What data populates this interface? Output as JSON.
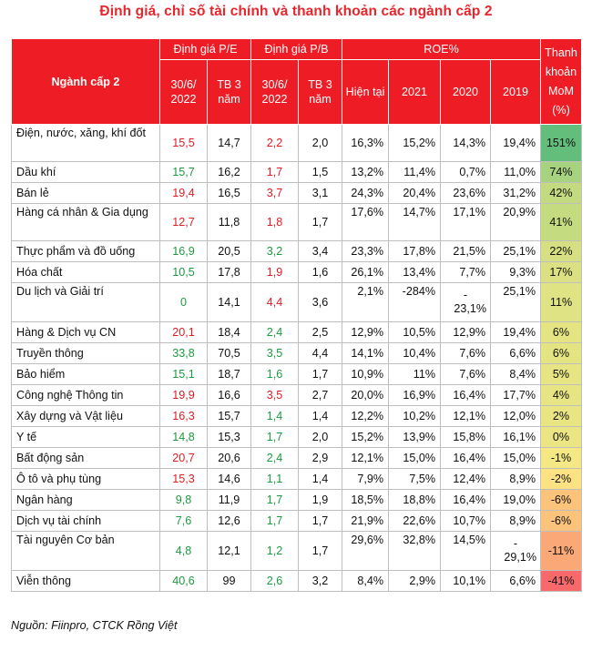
{
  "title": "Định giá, chỉ số tài chính và thanh khoản các ngành cấp 2",
  "headers": {
    "sector": "Ngành cấp 2",
    "pe": "Định giá P/E",
    "pb": "Định giá P/B",
    "roe": "ROE%",
    "liquidity": "Thanh khoản MoM (%)",
    "sub": {
      "date": "30/6/ 2022",
      "avg3y": "TB 3 năm",
      "current": "Hiện tại",
      "y2021": "2021",
      "y2020": "2020",
      "y2019": "2019"
    }
  },
  "rows": [
    {
      "name": "Điện, nước, xăng, khí đốt",
      "pe": "15,5",
      "pe_color": "red",
      "pe_avg": "14,7",
      "pb": "2,2",
      "pb_color": "red",
      "pb_avg": "2,0",
      "roe_now": "16,3%",
      "roe_2021": "15,2%",
      "roe_2020": "14,3%",
      "roe_2019": "19,4%",
      "liq": "151%",
      "liq_bg": "#63be7b",
      "tall": true
    },
    {
      "name": "Dầu khí",
      "pe": "15,7",
      "pe_color": "green",
      "pe_avg": "16,2",
      "pb": "1,7",
      "pb_color": "red",
      "pb_avg": "1,5",
      "roe_now": "13,2%",
      "roe_2021": "11,4%",
      "roe_2020": "0,7%",
      "roe_2019": "11,0%",
      "liq": "74%",
      "liq_bg": "#a7d27f"
    },
    {
      "name": "Bán lẻ",
      "pe": "19,4",
      "pe_color": "red",
      "pe_avg": "16,5",
      "pb": "3,7",
      "pb_color": "red",
      "pb_avg": "3,1",
      "roe_now": "24,3%",
      "roe_2021": "20,4%",
      "roe_2020": "23,6%",
      "roe_2019": "31,2%",
      "liq": "42%",
      "liq_bg": "#c4da80"
    },
    {
      "name": "Hàng cá nhân & Gia dụng",
      "pe": "12,7",
      "pe_color": "red",
      "pe_avg": "11,8",
      "pb": "1,8",
      "pb_color": "red",
      "pb_avg": "1,7",
      "roe_now": "17,6%",
      "roe_2021": "14,7%",
      "roe_2020": "17,1%",
      "roe_2019": "20,9%",
      "liq": "41%",
      "liq_bg": "#c5db80",
      "tall": true,
      "roe_top": true
    },
    {
      "name": "Thực phẩm và đồ uống",
      "pe": "16,9",
      "pe_color": "green",
      "pe_avg": "20,5",
      "pb": "3,2",
      "pb_color": "green",
      "pb_avg": "3,4",
      "roe_now": "23,3%",
      "roe_2021": "17,8%",
      "roe_2020": "21,5%",
      "roe_2019": "25,1%",
      "liq": "22%",
      "liq_bg": "#d6e082"
    },
    {
      "name": "Hóa chất",
      "pe": "10,5",
      "pe_color": "green",
      "pe_avg": "17,8",
      "pb": "1,9",
      "pb_color": "red",
      "pb_avg": "1,6",
      "roe_now": "26,1%",
      "roe_2021": "13,4%",
      "roe_2020": "7,7%",
      "roe_2019": "9,3%",
      "liq": "17%",
      "liq_bg": "#dbe182"
    },
    {
      "name": "Du lịch và Giải trí",
      "pe": "0",
      "pe_color": "green",
      "pe_avg": "14,1",
      "pb": "4,4",
      "pb_color": "red",
      "pb_avg": "3,6",
      "roe_now": "2,1%",
      "roe_2021": "-284%",
      "roe_2020": "-",
      "roe_2020_b": "23,1%",
      "roe_2019": "25,1%",
      "liq": "11%",
      "liq_bg": "#e0e383",
      "tall": true,
      "roe_top": true
    },
    {
      "name": "Hàng & Dịch vụ CN",
      "pe": "20,1",
      "pe_color": "red",
      "pe_avg": "18,4",
      "pb": "2,4",
      "pb_color": "green",
      "pb_avg": "2,5",
      "roe_now": "12,9%",
      "roe_2021": "10,5%",
      "roe_2020": "12,9%",
      "roe_2019": "19,4%",
      "liq": "6%",
      "liq_bg": "#e5e483"
    },
    {
      "name": "Truyền thông",
      "pe": "33,8",
      "pe_color": "green",
      "pe_avg": "70,5",
      "pb": "3,5",
      "pb_color": "green",
      "pb_avg": "4,4",
      "roe_now": "14,1%",
      "roe_2021": "10,4%",
      "roe_2020": "7,6%",
      "roe_2019": "6,6%",
      "liq": "6%",
      "liq_bg": "#e5e483"
    },
    {
      "name": "Bảo hiểm",
      "pe": "15,1",
      "pe_color": "green",
      "pe_avg": "18,7",
      "pb": "1,6",
      "pb_color": "green",
      "pb_avg": "1,7",
      "roe_now": "10,9%",
      "roe_2021": "11%",
      "roe_2020": "7,6%",
      "roe_2019": "8,4%",
      "liq": "5%",
      "liq_bg": "#e6e483"
    },
    {
      "name": "Công nghệ Thông tin",
      "pe": "19,9",
      "pe_color": "red",
      "pe_avg": "16,6",
      "pb": "3,5",
      "pb_color": "red",
      "pb_avg": "2,7",
      "roe_now": "20,0%",
      "roe_2021": "16,9%",
      "roe_2020": "16,4%",
      "roe_2019": "17,7%",
      "liq": "4%",
      "liq_bg": "#e7e583"
    },
    {
      "name": "Xây dựng và Vật liệu",
      "pe": "16,3",
      "pe_color": "red",
      "pe_avg": "15,7",
      "pb": "1,4",
      "pb_color": "green",
      "pb_avg": "1,4",
      "roe_now": "12,2%",
      "roe_2021": "10,2%",
      "roe_2020": "12,1%",
      "roe_2019": "12,0%",
      "liq": "2%",
      "liq_bg": "#e9e583"
    },
    {
      "name": "Y tế",
      "pe": "14,8",
      "pe_color": "green",
      "pe_avg": "15,3",
      "pb": "1,7",
      "pb_color": "green",
      "pb_avg": "2,0",
      "roe_now": "15,2%",
      "roe_2021": "13,9%",
      "roe_2020": "15,8%",
      "roe_2019": "16,1%",
      "liq": "0%",
      "liq_bg": "#ebe683"
    },
    {
      "name": "Bất động sản",
      "pe": "20,7",
      "pe_color": "red",
      "pe_avg": "20,6",
      "pb": "2,4",
      "pb_color": "green",
      "pb_avg": "2,9",
      "roe_now": "12,1%",
      "roe_2021": "15,0%",
      "roe_2020": "16,4%",
      "roe_2019": "15,0%",
      "liq": "-1%",
      "liq_bg": "#f5e884"
    },
    {
      "name": "Ô tô và phụ tùng",
      "pe": "15,3",
      "pe_color": "red",
      "pe_avg": "14,6",
      "pb": "1,1",
      "pb_color": "green",
      "pb_avg": "1,4",
      "roe_now": "7,9%",
      "roe_2021": "7,5%",
      "roe_2020": "12,4%",
      "roe_2019": "8,9%",
      "liq": "-2%",
      "liq_bg": "#fde283"
    },
    {
      "name": "Ngân hàng",
      "pe": "9,8",
      "pe_color": "green",
      "pe_avg": "11,9",
      "pb": "1,7",
      "pb_color": "green",
      "pb_avg": "1,9",
      "roe_now": "18,5%",
      "roe_2021": "18,8%",
      "roe_2020": "16,4%",
      "roe_2019": "19,0%",
      "liq": "-6%",
      "liq_bg": "#fcc37b"
    },
    {
      "name": "Dịch vụ tài chính",
      "pe": "7,6",
      "pe_color": "green",
      "pe_avg": "12,6",
      "pb": "1,7",
      "pb_color": "green",
      "pb_avg": "1,7",
      "roe_now": "21,9%",
      "roe_2021": "22,6%",
      "roe_2020": "10,7%",
      "roe_2019": "8,9%",
      "liq": "-6%",
      "liq_bg": "#fcc37b"
    },
    {
      "name": "Tài nguyên Cơ bản",
      "pe": "4,8",
      "pe_color": "green",
      "pe_avg": "12,1",
      "pb": "1,2",
      "pb_color": "green",
      "pb_avg": "1,7",
      "roe_now": "29,6%",
      "roe_2021": "32,8%",
      "roe_2020": "14,5%",
      "roe_2019": "-",
      "roe_2019_b": "29,1%",
      "liq": "-11%",
      "liq_bg": "#fba877",
      "tall": true,
      "roe_top": true
    },
    {
      "name": "Viễn thông",
      "pe": "40,6",
      "pe_color": "green",
      "pe_avg": "99",
      "pb": "2,6",
      "pb_color": "green",
      "pb_avg": "3,2",
      "roe_now": "8,4%",
      "roe_2021": "2,9%",
      "roe_2020": "10,1%",
      "roe_2019": "6,6%",
      "liq": "-41%",
      "liq_bg": "#f8696b"
    }
  ],
  "source": "Nguồn: Fiinpro, CTCK Rồng Việt"
}
